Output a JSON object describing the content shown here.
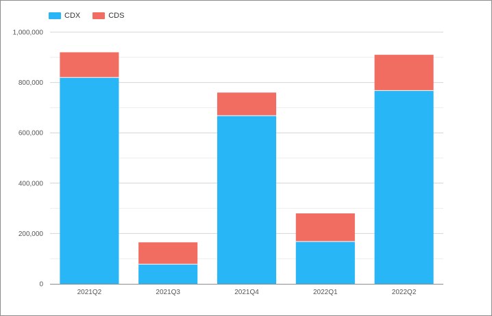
{
  "chart_data": {
    "type": "bar",
    "stacked": true,
    "categories": [
      "2021Q2",
      "2021Q3",
      "2021Q4",
      "2022Q1",
      "2022Q2"
    ],
    "series": [
      {
        "name": "CDX",
        "color": "#29b6f6",
        "values": [
          820000,
          78000,
          668000,
          168000,
          768000
        ]
      },
      {
        "name": "CDS",
        "color": "#f26d61",
        "values": [
          100000,
          87000,
          92000,
          112000,
          142000
        ]
      }
    ],
    "ylim": [
      0,
      1000000
    ],
    "yticks": [
      0,
      200000,
      400000,
      600000,
      800000,
      1000000
    ],
    "ytick_labels": [
      "0",
      "200,000",
      "400,000",
      "600,000",
      "800,000",
      "1,000,000"
    ],
    "grid": true,
    "legend_position": "top-left",
    "title": "",
    "xlabel": "",
    "ylabel": ""
  }
}
